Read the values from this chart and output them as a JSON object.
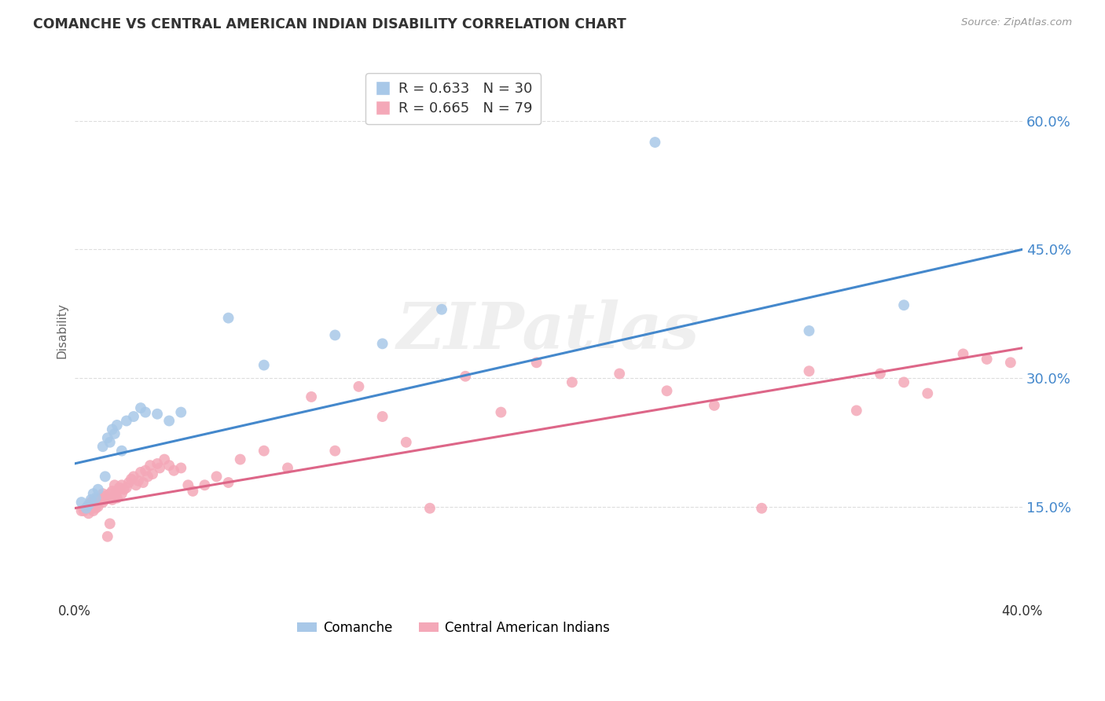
{
  "title": "COMANCHE VS CENTRAL AMERICAN INDIAN DISABILITY CORRELATION CHART",
  "source": "Source: ZipAtlas.com",
  "ylabel": "Disability",
  "xlim": [
    0.0,
    0.4
  ],
  "ylim": [
    0.04,
    0.67
  ],
  "ytick_vals": [
    0.15,
    0.3,
    0.45,
    0.6
  ],
  "ytick_labels": [
    "15.0%",
    "30.0%",
    "45.0%",
    "60.0%"
  ],
  "xtick_vals": [
    0.0,
    0.1,
    0.2,
    0.3,
    0.4
  ],
  "xtick_labels": [
    "0.0%",
    "",
    "",
    "",
    "40.0%"
  ],
  "watermark": "ZIPatlas",
  "legend_blue_r": "R = 0.633",
  "legend_blue_n": "N = 30",
  "legend_pink_r": "R = 0.665",
  "legend_pink_n": "N = 79",
  "legend_label_blue": "Comanche",
  "legend_label_pink": "Central American Indians",
  "blue_color": "#a8c8e8",
  "pink_color": "#f4a8b8",
  "blue_line_color": "#4488cc",
  "pink_line_color": "#dd6688",
  "ytick_color": "#4488cc",
  "background_color": "#ffffff",
  "grid_color": "#dddddd",
  "blue_line_x0": 0.0,
  "blue_line_y0": 0.2,
  "blue_line_x1": 0.4,
  "blue_line_y1": 0.45,
  "pink_line_x0": 0.0,
  "pink_line_y0": 0.148,
  "pink_line_x1": 0.4,
  "pink_line_y1": 0.335,
  "comanche_x": [
    0.003,
    0.005,
    0.006,
    0.007,
    0.008,
    0.009,
    0.01,
    0.012,
    0.013,
    0.014,
    0.015,
    0.016,
    0.017,
    0.018,
    0.02,
    0.022,
    0.025,
    0.028,
    0.03,
    0.035,
    0.04,
    0.045,
    0.065,
    0.08,
    0.11,
    0.13,
    0.155,
    0.245,
    0.31,
    0.35
  ],
  "comanche_y": [
    0.155,
    0.148,
    0.152,
    0.158,
    0.165,
    0.16,
    0.17,
    0.22,
    0.185,
    0.23,
    0.225,
    0.24,
    0.235,
    0.245,
    0.215,
    0.25,
    0.255,
    0.265,
    0.26,
    0.258,
    0.25,
    0.26,
    0.37,
    0.315,
    0.35,
    0.34,
    0.38,
    0.575,
    0.355,
    0.385
  ],
  "cai_x": [
    0.003,
    0.004,
    0.005,
    0.006,
    0.006,
    0.007,
    0.007,
    0.008,
    0.008,
    0.009,
    0.009,
    0.01,
    0.01,
    0.011,
    0.012,
    0.012,
    0.013,
    0.013,
    0.014,
    0.015,
    0.015,
    0.016,
    0.016,
    0.017,
    0.017,
    0.018,
    0.018,
    0.019,
    0.02,
    0.02,
    0.021,
    0.022,
    0.023,
    0.024,
    0.025,
    0.026,
    0.027,
    0.028,
    0.029,
    0.03,
    0.031,
    0.032,
    0.033,
    0.035,
    0.036,
    0.038,
    0.04,
    0.042,
    0.045,
    0.048,
    0.05,
    0.055,
    0.06,
    0.065,
    0.07,
    0.08,
    0.09,
    0.1,
    0.11,
    0.12,
    0.13,
    0.14,
    0.15,
    0.165,
    0.18,
    0.195,
    0.21,
    0.23,
    0.25,
    0.27,
    0.29,
    0.31,
    0.33,
    0.34,
    0.35,
    0.36,
    0.375,
    0.385,
    0.395
  ],
  "cai_y": [
    0.145,
    0.145,
    0.148,
    0.142,
    0.15,
    0.148,
    0.155,
    0.145,
    0.152,
    0.148,
    0.158,
    0.15,
    0.155,
    0.16,
    0.155,
    0.165,
    0.158,
    0.162,
    0.115,
    0.13,
    0.165,
    0.158,
    0.168,
    0.162,
    0.175,
    0.16,
    0.168,
    0.172,
    0.165,
    0.175,
    0.17,
    0.172,
    0.178,
    0.182,
    0.185,
    0.175,
    0.18,
    0.19,
    0.178,
    0.192,
    0.185,
    0.198,
    0.188,
    0.2,
    0.195,
    0.205,
    0.198,
    0.192,
    0.195,
    0.175,
    0.168,
    0.175,
    0.185,
    0.178,
    0.205,
    0.215,
    0.195,
    0.278,
    0.215,
    0.29,
    0.255,
    0.225,
    0.148,
    0.302,
    0.26,
    0.318,
    0.295,
    0.305,
    0.285,
    0.268,
    0.148,
    0.308,
    0.262,
    0.305,
    0.295,
    0.282,
    0.328,
    0.322,
    0.318
  ]
}
